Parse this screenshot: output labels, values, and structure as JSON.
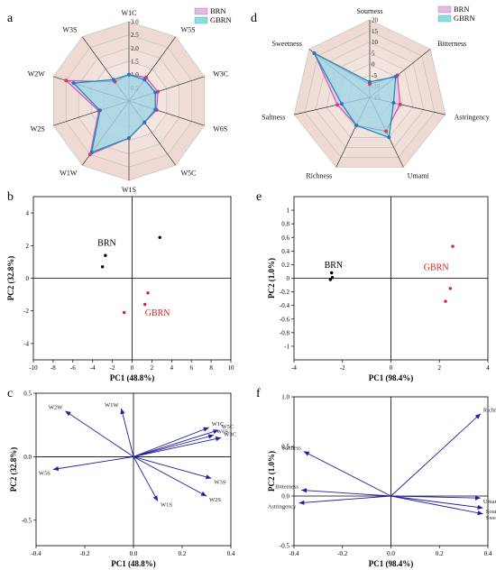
{
  "chart_data": [
    {
      "panel": "a",
      "type": "radar",
      "axes": [
        "W1C",
        "W5S",
        "W3C",
        "W6S",
        "W5C",
        "W1S",
        "W1W",
        "W2S",
        "W2W",
        "W3S"
      ],
      "rlim": [
        0,
        3.0
      ],
      "ticks": [
        "0",
        "0.5",
        "1.0",
        "1.5",
        "2.0",
        "2.5",
        "3.0"
      ],
      "tick_values": [
        0,
        0.5,
        1.0,
        1.5,
        2.0,
        2.5,
        3.0
      ],
      "series": [
        {
          "name": "BRN",
          "color": "#e8b6e8",
          "marker": "#e03a5a",
          "values": [
            1.0,
            1.1,
            1.15,
            1.1,
            1.0,
            1.4,
            2.5,
            1.2,
            2.5,
            0.9
          ]
        },
        {
          "name": "GBRN",
          "color": "#7fe3e3",
          "marker": "#2a6fd6",
          "values": [
            1.0,
            1.0,
            1.05,
            1.05,
            1.0,
            1.4,
            2.4,
            1.15,
            2.2,
            1.0
          ]
        }
      ],
      "legend": "top-right"
    },
    {
      "panel": "b",
      "type": "scatter",
      "xlabel": "PC1 (48.8%)",
      "ylabel": "PC2 (32.8%)",
      "xlim": [
        -10,
        10
      ],
      "ylim": [
        -5,
        5
      ],
      "xticks": [
        -10,
        -8,
        -6,
        -4,
        -2,
        0,
        2,
        4,
        6,
        8,
        10
      ],
      "yticks": [
        -4,
        -2,
        0,
        2,
        4
      ],
      "series": [
        {
          "name": "BRN",
          "color": "#000000",
          "points": [
            [
              -2.7,
              1.4
            ],
            [
              -3.0,
              0.7
            ],
            [
              2.8,
              2.5
            ]
          ]
        },
        {
          "name": "GBRN",
          "color": "#e02020",
          "points": [
            [
              1.6,
              -0.9
            ],
            [
              1.3,
              -1.6
            ],
            [
              -0.8,
              -2.1
            ]
          ]
        }
      ],
      "annotations": [
        {
          "text": "BRN",
          "x": -3.5,
          "y": 2.0,
          "color": "#000000"
        },
        {
          "text": "GBRN",
          "x": 1.3,
          "y": -2.3,
          "color": "#e02020"
        }
      ]
    },
    {
      "panel": "c",
      "type": "biplot",
      "xlabel": "PC1 (48.8%)",
      "ylabel": "PC2 (32.8%)",
      "xlim": [
        -0.4,
        0.4
      ],
      "ylim": [
        -0.7,
        0.5
      ],
      "xticks": [
        -0.4,
        -0.2,
        0.0,
        0.2,
        0.4
      ],
      "yticks": [
        -0.5,
        0.0,
        0.5
      ],
      "vectors": [
        {
          "label": "W2W",
          "x": -0.28,
          "y": 0.36
        },
        {
          "label": "W1W",
          "x": -0.05,
          "y": 0.38
        },
        {
          "label": "W1C",
          "x": 0.31,
          "y": 0.23
        },
        {
          "label": "W5C",
          "x": 0.35,
          "y": 0.21
        },
        {
          "label": "W3C",
          "x": 0.36,
          "y": 0.15
        },
        {
          "label": "W6S",
          "x": 0.33,
          "y": 0.17
        },
        {
          "label": "W5S",
          "x": -0.33,
          "y": -0.1
        },
        {
          "label": "W3S",
          "x": 0.32,
          "y": -0.17
        },
        {
          "label": "W2S",
          "x": 0.3,
          "y": -0.31
        },
        {
          "label": "W1S",
          "x": 0.1,
          "y": -0.35
        }
      ],
      "color": "#2020a0"
    },
    {
      "panel": "d",
      "type": "radar",
      "axes": [
        "Sourness",
        "Bitterness",
        "Astringency",
        "Umami",
        "Richness",
        "Saltness",
        "Sweetness"
      ],
      "rlim": [
        -15,
        20
      ],
      "ticks": [
        "-15",
        "-10",
        "-5",
        "0",
        "5",
        "10",
        "15",
        "20"
      ],
      "tick_values": [
        -15,
        -10,
        -5,
        0,
        5,
        10,
        15,
        20
      ],
      "series": [
        {
          "name": "BRN",
          "color": "#e8b6e8",
          "marker": "#e03a5a",
          "values": [
            -9,
            1,
            -1,
            2,
            -1,
            0,
            17
          ]
        },
        {
          "name": "GBRN",
          "color": "#7fe3e3",
          "marker": "#2a6fd6",
          "values": [
            -8,
            0,
            -4,
            5,
            -1,
            -2,
            17
          ]
        }
      ],
      "legend": "top-right"
    },
    {
      "panel": "e",
      "type": "scatter",
      "xlabel": "PC1 (98.4%)",
      "ylabel": "PC2 (1.0%)",
      "xlim": [
        -4,
        4
      ],
      "ylim": [
        -1.2,
        1.2
      ],
      "xticks": [
        -4,
        -2,
        0,
        2,
        4
      ],
      "yticks": [
        -1.0,
        -0.8,
        -0.6,
        -0.4,
        -0.2,
        0.0,
        0.2,
        0.4,
        0.6,
        0.8,
        1.0
      ],
      "series": [
        {
          "name": "BRN",
          "color": "#000000",
          "points": [
            [
              -2.45,
              0.08
            ],
            [
              -2.5,
              -0.02
            ],
            [
              -2.42,
              0.01
            ]
          ]
        },
        {
          "name": "GBRN",
          "color": "#e02020",
          "points": [
            [
              2.55,
              0.47
            ],
            [
              2.45,
              -0.15
            ],
            [
              2.25,
              -0.34
            ]
          ]
        }
      ],
      "annotations": [
        {
          "text": "BRN",
          "x": -2.75,
          "y": 0.15,
          "color": "#000000"
        },
        {
          "text": "GBRN",
          "x": 1.35,
          "y": 0.12,
          "color": "#e02020"
        }
      ]
    },
    {
      "panel": "f",
      "type": "biplot",
      "xlabel": "PC1 (98.4%)",
      "ylabel": "PC2 (1.0%)",
      "xlim": [
        -0.4,
        0.4
      ],
      "ylim": [
        -0.5,
        1.0
      ],
      "xticks": [
        -0.4,
        -0.2,
        0.0,
        0.2,
        0.4
      ],
      "yticks": [
        -0.5,
        0.0,
        0.5,
        1.0
      ],
      "vectors": [
        {
          "label": "Richness",
          "x": 0.37,
          "y": 0.83
        },
        {
          "label": "Saltness",
          "x": -0.36,
          "y": 0.45
        },
        {
          "label": "Bitterness",
          "x": -0.37,
          "y": 0.06
        },
        {
          "label": "Astringency",
          "x": -0.38,
          "y": -0.07
        },
        {
          "label": "Umami",
          "x": 0.37,
          "y": -0.02
        },
        {
          "label": "Sourness",
          "x": 0.38,
          "y": -0.12
        },
        {
          "label": "Sweetness",
          "x": 0.38,
          "y": -0.18
        }
      ],
      "color": "#2020a0"
    }
  ]
}
